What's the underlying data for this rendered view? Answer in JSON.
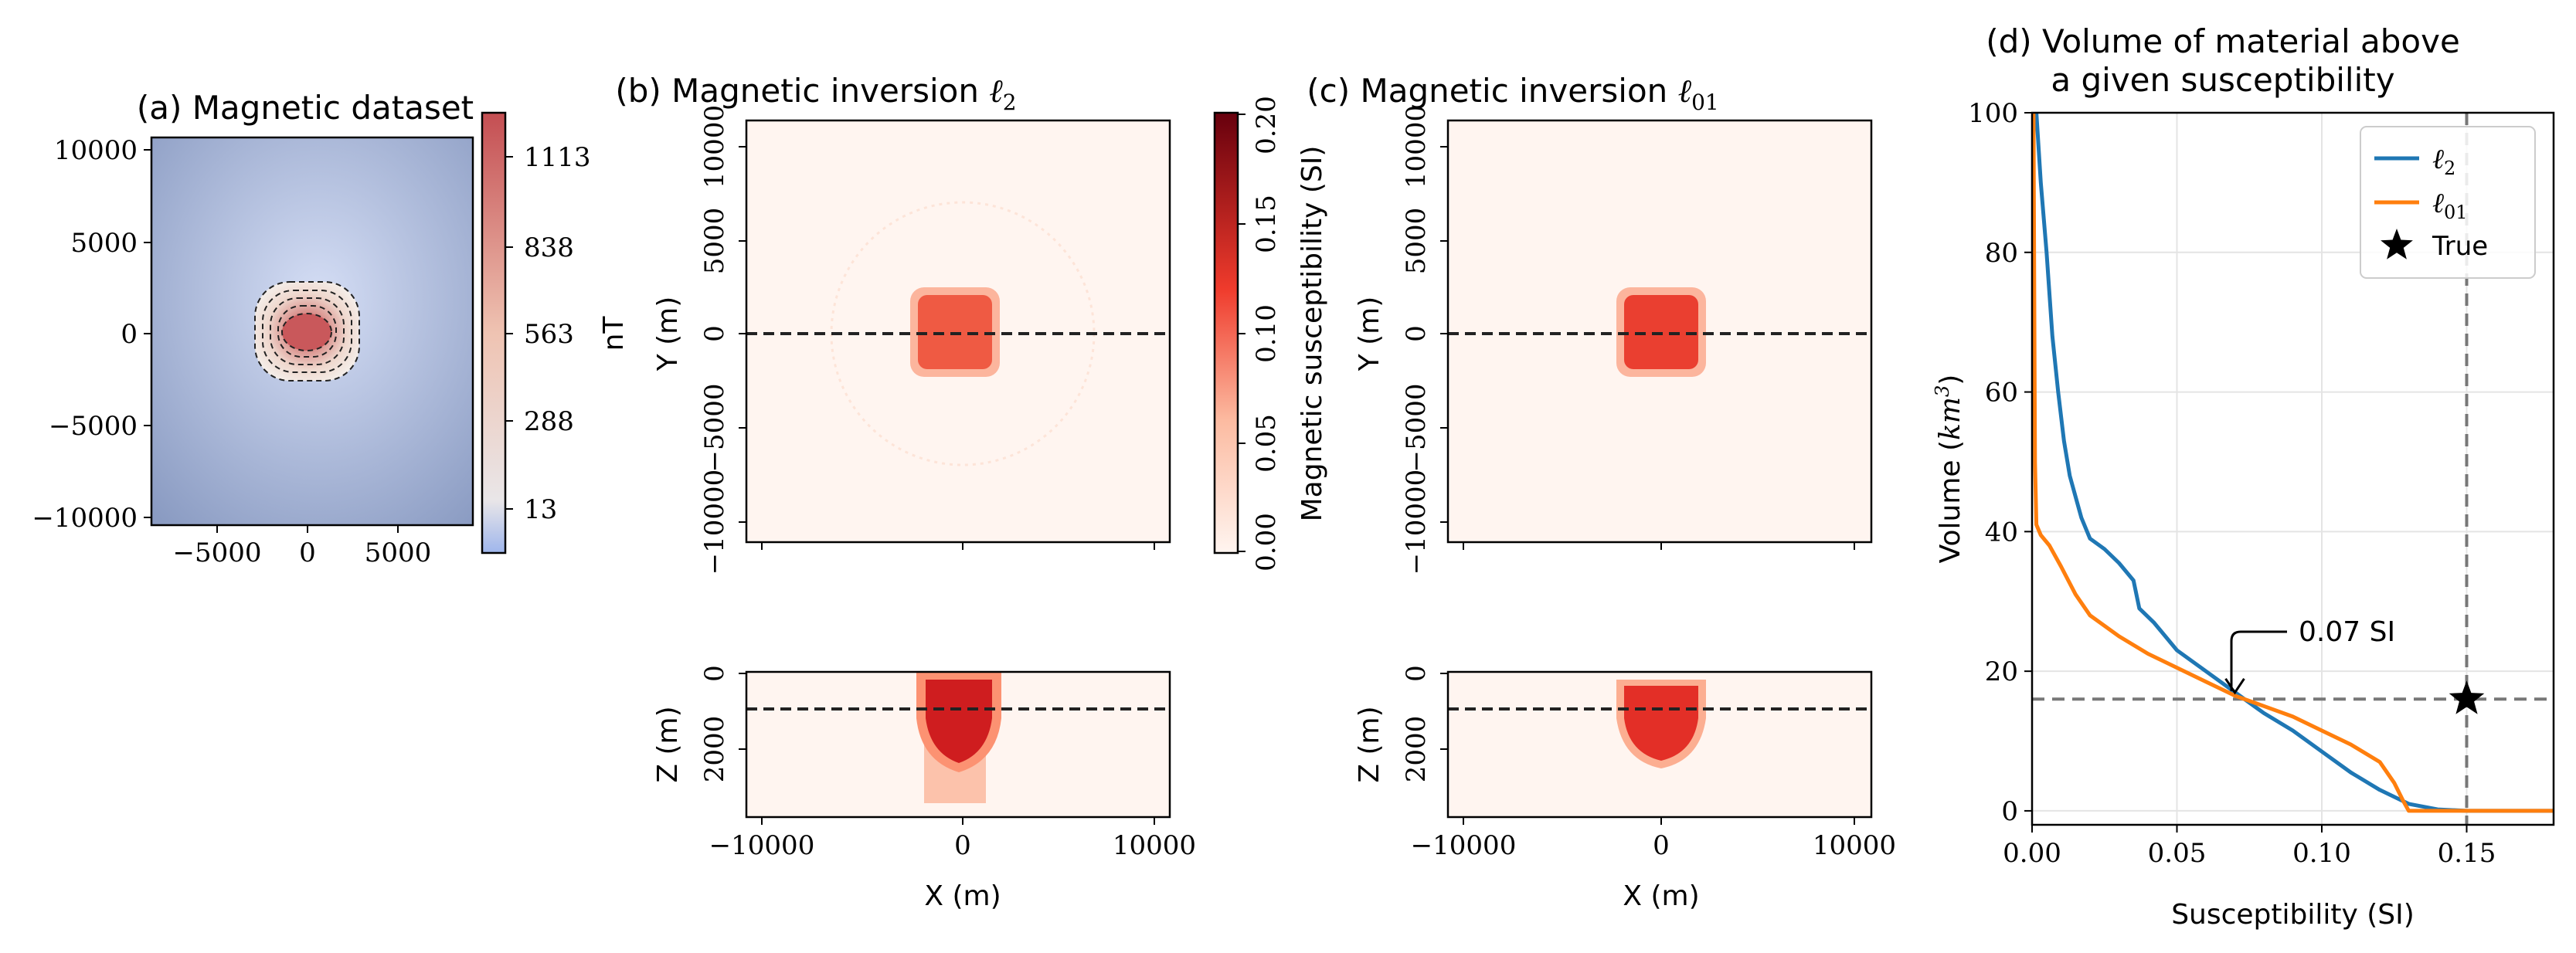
{
  "panels": {
    "a": {
      "title": "(a) Magnetic dataset",
      "x_ticks": [
        "−5000",
        "0",
        "5000"
      ],
      "y_ticks": [
        "10000",
        "5000",
        "0",
        "−5000",
        "−10000"
      ],
      "colorbar_ticks": [
        "1113",
        "838",
        "563",
        "288",
        "13"
      ],
      "colorbar_label": "nT",
      "colors": {
        "low": "#b9c9ef",
        "high": "#c44e52",
        "mid": "#efe8e4"
      }
    },
    "b": {
      "title_text": "(b) Magnetic inversion ",
      "title_norm": "ℓ",
      "title_sub": "2",
      "y_label": "Y (m)",
      "z_label": "Z (m)",
      "x_label": "X (m)",
      "y_ticks": [
        "10000",
        "5000",
        "0",
        "−5000",
        "−10000"
      ],
      "z_ticks": [
        "0",
        "2000"
      ],
      "x_ticks": [
        "−10000",
        "0",
        "10000"
      ]
    },
    "colorbar_b": {
      "ticks": [
        "0.20",
        "0.15",
        "0.10",
        "0.05",
        "0.00"
      ],
      "label": "Magnetic susceptibility (SI)",
      "colors": {
        "low": "#fff5f0",
        "high": "#67000d"
      }
    },
    "c": {
      "title_text": "(c) Magnetic inversion ",
      "title_norm": "ℓ",
      "title_sub": "01",
      "y_label": "Y (m)",
      "z_label": "Z (m)",
      "x_label": "X (m)",
      "y_ticks": [
        "10000",
        "5000",
        "0",
        "−5000",
        "−10000"
      ],
      "z_ticks": [
        "0",
        "2000"
      ],
      "x_ticks": [
        "−10000",
        "0",
        "10000"
      ]
    }
  },
  "chart_data": {
    "type": "line",
    "title_line1": "(d) Volume of material above",
    "title_line2": "a given susceptibility",
    "xlabel": "Susceptibility (SI)",
    "ylabel": "Volume (km³)",
    "ylabel_prefix": "Volume (",
    "ylabel_unit": "km",
    "ylabel_exp": "3",
    "ylabel_suffix": ")",
    "xlim": [
      0,
      0.18
    ],
    "ylim": [
      -2,
      100
    ],
    "x_ticks": [
      0,
      0.05,
      0.1,
      0.15
    ],
    "x_tick_labels": [
      "0.00",
      "0.05",
      "0.10",
      "0.15"
    ],
    "y_ticks": [
      0,
      20,
      40,
      60,
      80,
      100
    ],
    "y_tick_labels": [
      "0",
      "20",
      "40",
      "60",
      "80",
      "100"
    ],
    "grid": true,
    "legend": "top-right",
    "series": [
      {
        "name": "ℓ2",
        "legend_sub": "2",
        "color": "#1f77b4",
        "points": [
          [
            0.0015,
            100
          ],
          [
            0.003,
            90
          ],
          [
            0.005,
            80
          ],
          [
            0.007,
            68
          ],
          [
            0.009,
            60
          ],
          [
            0.011,
            53
          ],
          [
            0.013,
            48
          ],
          [
            0.015,
            45
          ],
          [
            0.017,
            42
          ],
          [
            0.02,
            39
          ],
          [
            0.025,
            37.5
          ],
          [
            0.03,
            35.5
          ],
          [
            0.035,
            33
          ],
          [
            0.037,
            29
          ],
          [
            0.042,
            27
          ],
          [
            0.05,
            23
          ],
          [
            0.06,
            20
          ],
          [
            0.07,
            17
          ],
          [
            0.08,
            14
          ],
          [
            0.09,
            11.5
          ],
          [
            0.1,
            8.5
          ],
          [
            0.11,
            5.5
          ],
          [
            0.12,
            3
          ],
          [
            0.13,
            1
          ],
          [
            0.14,
            0.2
          ],
          [
            0.15,
            0
          ],
          [
            0.18,
            0
          ]
        ]
      },
      {
        "name": "ℓ01",
        "legend_sub": "01",
        "color": "#ff7f0e",
        "points": [
          [
            0.0005,
            100
          ],
          [
            0.0008,
            70
          ],
          [
            0.001,
            50
          ],
          [
            0.0015,
            41
          ],
          [
            0.003,
            39.5
          ],
          [
            0.006,
            38
          ],
          [
            0.01,
            35
          ],
          [
            0.015,
            31
          ],
          [
            0.02,
            28
          ],
          [
            0.03,
            25
          ],
          [
            0.04,
            22.5
          ],
          [
            0.05,
            20.5
          ],
          [
            0.06,
            18.5
          ],
          [
            0.07,
            16.5
          ],
          [
            0.08,
            15
          ],
          [
            0.09,
            13.5
          ],
          [
            0.1,
            11.5
          ],
          [
            0.11,
            9.5
          ],
          [
            0.12,
            7
          ],
          [
            0.125,
            4
          ],
          [
            0.128,
            1.5
          ],
          [
            0.13,
            0
          ],
          [
            0.18,
            0
          ]
        ]
      }
    ],
    "true_point": {
      "name": "True",
      "x": 0.15,
      "y": 16
    },
    "reference_lines": {
      "x": 0.15,
      "y": 16
    },
    "annotation": {
      "text": "0.07 SI",
      "x": 0.07,
      "y": 16.5
    }
  }
}
